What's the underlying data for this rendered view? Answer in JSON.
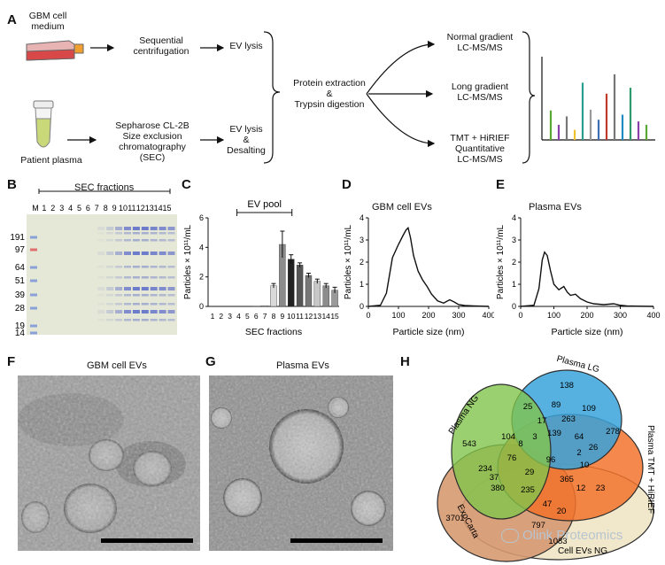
{
  "panels": {
    "A": "A",
    "B": "B",
    "C": "C",
    "D": "D",
    "E": "E",
    "F": "F",
    "G": "G",
    "H": "H"
  },
  "panelA": {
    "gbm_medium": "GBM cell\nmedium",
    "seq_centrifugation": "Sequential\ncentrifugation",
    "ev_lysis_top": "EV lysis",
    "patient_plasma": "Patient plasma",
    "sec_step": "Sepharose CL-2B\nSize exclusion\nchromatography\n(SEC)",
    "ev_lysis_desalting": "EV lysis\n&\nDesalting",
    "protein_extraction": "Protein extraction\n&\nTrypsin digestion",
    "normal_gradient": "Normal gradient\nLC-MS/MS",
    "long_gradient": "Long gradient\nLC-MS/MS",
    "tmt": "TMT + HiRIEF\nQuantitative\nLC-MS/MS",
    "spectrum_colors": [
      "#5aa832",
      "#8b3fa8",
      "#777777",
      "#f2c12e",
      "#2a9d8f",
      "#9a9a9a",
      "#3e6fb5",
      "#c0392b",
      "#777777",
      "#1e8bc3",
      "#2e9a6b",
      "#8b3fa8",
      "#5aa832"
    ],
    "spectrum_levels": [
      0.35,
      0.18,
      0.28,
      0.12,
      0.68,
      0.36,
      0.24,
      0.55,
      0.78,
      0.3,
      0.62,
      0.22,
      0.18
    ]
  },
  "panelB": {
    "header": "SEC fractions",
    "lane_labels": [
      "M",
      "1",
      "2",
      "3",
      "4",
      "5",
      "6",
      "7",
      "8",
      "9",
      "10",
      "11",
      "12",
      "13",
      "14",
      "15"
    ],
    "mw_labels": [
      "191",
      "97",
      "64",
      "51",
      "39",
      "28",
      "19",
      "14"
    ]
  },
  "chart_data": [
    {
      "type": "bar",
      "panel": "C",
      "categories": [
        "1",
        "2",
        "3",
        "4",
        "5",
        "6",
        "7",
        "8",
        "9",
        "10",
        "11",
        "12",
        "13",
        "14",
        "15"
      ],
      "values": [
        0,
        0,
        0,
        0,
        0,
        0.02,
        0.05,
        1.4,
        4.2,
        3.2,
        2.8,
        2.1,
        1.7,
        1.4,
        1.1
      ],
      "errors": [
        0,
        0,
        0,
        0,
        0,
        0,
        0,
        0.15,
        0.9,
        0.3,
        0.15,
        0.15,
        0.15,
        0.15,
        0.2
      ],
      "bar_colors": [
        "#cccccc",
        "#cccccc",
        "#cccccc",
        "#cccccc",
        "#cccccc",
        "#cccccc",
        "#cccccc",
        "#d9d9d9",
        "#8c8c8c",
        "#222222",
        "#555555",
        "#777777",
        "#c8c8c8",
        "#8c8c8c",
        "#9a9a9a"
      ],
      "xlabel": "SEC fractions",
      "ylabel": "Particles × 10¹¹/mL",
      "ylim": [
        0,
        6
      ],
      "yticks": [
        "0",
        "2",
        "4",
        "6"
      ],
      "annotation": "EV pool"
    },
    {
      "type": "line",
      "panel": "D",
      "title": "GBM cell EVs",
      "x": [
        0,
        40,
        60,
        80,
        100,
        115,
        125,
        132,
        140,
        150,
        165,
        180,
        195,
        210,
        230,
        250,
        270,
        285,
        300,
        320,
        350,
        400
      ],
      "y": [
        0,
        0.05,
        0.6,
        2.2,
        2.8,
        3.2,
        3.45,
        3.55,
        3.1,
        2.3,
        1.6,
        1.2,
        0.9,
        0.55,
        0.25,
        0.15,
        0.3,
        0.2,
        0.08,
        0.04,
        0.02,
        0
      ],
      "xlabel": "Particle size (nm)",
      "ylabel": "Particles × 10¹¹/mL",
      "xlim": [
        0,
        400
      ],
      "ylim": [
        0,
        4
      ],
      "xticks": [
        "0",
        "100",
        "200",
        "300",
        "400"
      ],
      "yticks": [
        "0",
        "1",
        "2",
        "3",
        "4"
      ]
    },
    {
      "type": "line",
      "panel": "E",
      "title": "Plasma EVs",
      "x": [
        0,
        40,
        55,
        65,
        72,
        80,
        90,
        100,
        115,
        130,
        140,
        150,
        165,
        180,
        200,
        220,
        250,
        280,
        300,
        320,
        350,
        400
      ],
      "y": [
        0,
        0.05,
        0.8,
        2.1,
        2.45,
        2.3,
        1.6,
        1.0,
        0.75,
        0.9,
        0.65,
        0.5,
        0.55,
        0.35,
        0.2,
        0.12,
        0.08,
        0.12,
        0.05,
        0.02,
        0.01,
        0
      ],
      "xlabel": "Particle size (nm)",
      "ylabel": "Particles × 10¹¹/mL",
      "xlim": [
        0,
        400
      ],
      "ylim": [
        0,
        4
      ],
      "xticks": [
        "0",
        "100",
        "200",
        "300",
        "400"
      ],
      "yticks": [
        "0",
        "1",
        "2",
        "3",
        "4"
      ]
    },
    {
      "type": "venn",
      "panel": "H",
      "sets": [
        "Plasma NG",
        "Plasma LG",
        "Plasma TMT + HiRIEF",
        "ExoCarta",
        "Cell EVs NG"
      ],
      "set_colors": [
        "#7cc242",
        "#2e9fd9",
        "#f26b21",
        "#d4956a",
        "#f1e7c9"
      ],
      "region_values": [
        "543",
        "138",
        "278",
        "3701",
        "1083",
        "25",
        "89",
        "109",
        "263",
        "17",
        "3",
        "104",
        "8",
        "139",
        "64",
        "26",
        "76",
        "96",
        "2",
        "10",
        "234",
        "29",
        "365",
        "380",
        "235",
        "37",
        "12",
        "23",
        "47",
        "20",
        "797"
      ]
    }
  ],
  "micrographs": {
    "F_title": "GBM cell EVs",
    "G_title": "Plasma EVs"
  },
  "watermark": "Olink Proteomics"
}
